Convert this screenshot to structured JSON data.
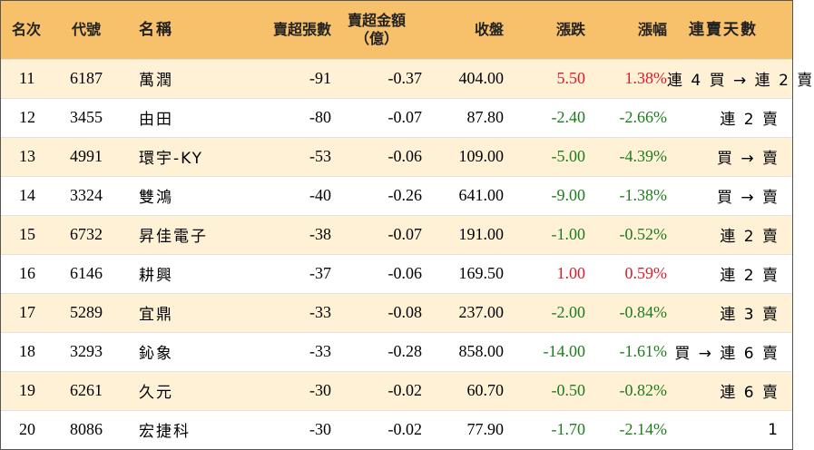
{
  "headers": {
    "rank": "名次",
    "code": "代號",
    "name": "名稱",
    "net_lots": "賣超張數",
    "net_amount_line1": "賣超金額",
    "net_amount_line2": "（億）",
    "close": "收盤",
    "change": "漲跌",
    "change_pct": "漲幅",
    "streak": "連賣天數"
  },
  "colors": {
    "header_bg": "#f7c06b",
    "odd_row_bg": "#fff1d6",
    "up": "#e0192b",
    "down": "#1e7b1e"
  },
  "rows": [
    {
      "rank": "11",
      "code": "6187",
      "name": "萬潤",
      "net_lots": "-91",
      "net_amount": "-0.37",
      "close": "404.00",
      "change": "5.50",
      "change_pct": "1.38%",
      "direction": "up",
      "streak": "連 4 買 → 連 2 賣"
    },
    {
      "rank": "12",
      "code": "3455",
      "name": "由田",
      "net_lots": "-80",
      "net_amount": "-0.07",
      "close": "87.80",
      "change": "-2.40",
      "change_pct": "-2.66%",
      "direction": "down",
      "streak": "連 2 賣"
    },
    {
      "rank": "13",
      "code": "4991",
      "name": "環宇-KY",
      "net_lots": "-53",
      "net_amount": "-0.06",
      "close": "109.00",
      "change": "-5.00",
      "change_pct": "-4.39%",
      "direction": "down",
      "streak": "買 → 賣"
    },
    {
      "rank": "14",
      "code": "3324",
      "name": "雙鴻",
      "net_lots": "-40",
      "net_amount": "-0.26",
      "close": "641.00",
      "change": "-9.00",
      "change_pct": "-1.38%",
      "direction": "down",
      "streak": "買 → 賣"
    },
    {
      "rank": "15",
      "code": "6732",
      "name": "昇佳電子",
      "net_lots": "-38",
      "net_amount": "-0.07",
      "close": "191.00",
      "change": "-1.00",
      "change_pct": "-0.52%",
      "direction": "down",
      "streak": "連 2 賣"
    },
    {
      "rank": "16",
      "code": "6146",
      "name": "耕興",
      "net_lots": "-37",
      "net_amount": "-0.06",
      "close": "169.50",
      "change": "1.00",
      "change_pct": "0.59%",
      "direction": "up",
      "streak": "連 2 賣"
    },
    {
      "rank": "17",
      "code": "5289",
      "name": "宜鼎",
      "net_lots": "-33",
      "net_amount": "-0.08",
      "close": "237.00",
      "change": "-2.00",
      "change_pct": "-0.84%",
      "direction": "down",
      "streak": "連 3 賣"
    },
    {
      "rank": "18",
      "code": "3293",
      "name": "鈊象",
      "net_lots": "-33",
      "net_amount": "-0.28",
      "close": "858.00",
      "change": "-14.00",
      "change_pct": "-1.61%",
      "direction": "down",
      "streak": "買 → 連 6 賣"
    },
    {
      "rank": "19",
      "code": "6261",
      "name": "久元",
      "net_lots": "-30",
      "net_amount": "-0.02",
      "close": "60.70",
      "change": "-0.50",
      "change_pct": "-0.82%",
      "direction": "down",
      "streak": "連 6 賣"
    },
    {
      "rank": "20",
      "code": "8086",
      "name": "宏捷科",
      "net_lots": "-30",
      "net_amount": "-0.02",
      "close": "77.90",
      "change": "-1.70",
      "change_pct": "-2.14%",
      "direction": "down",
      "streak": "1"
    }
  ]
}
